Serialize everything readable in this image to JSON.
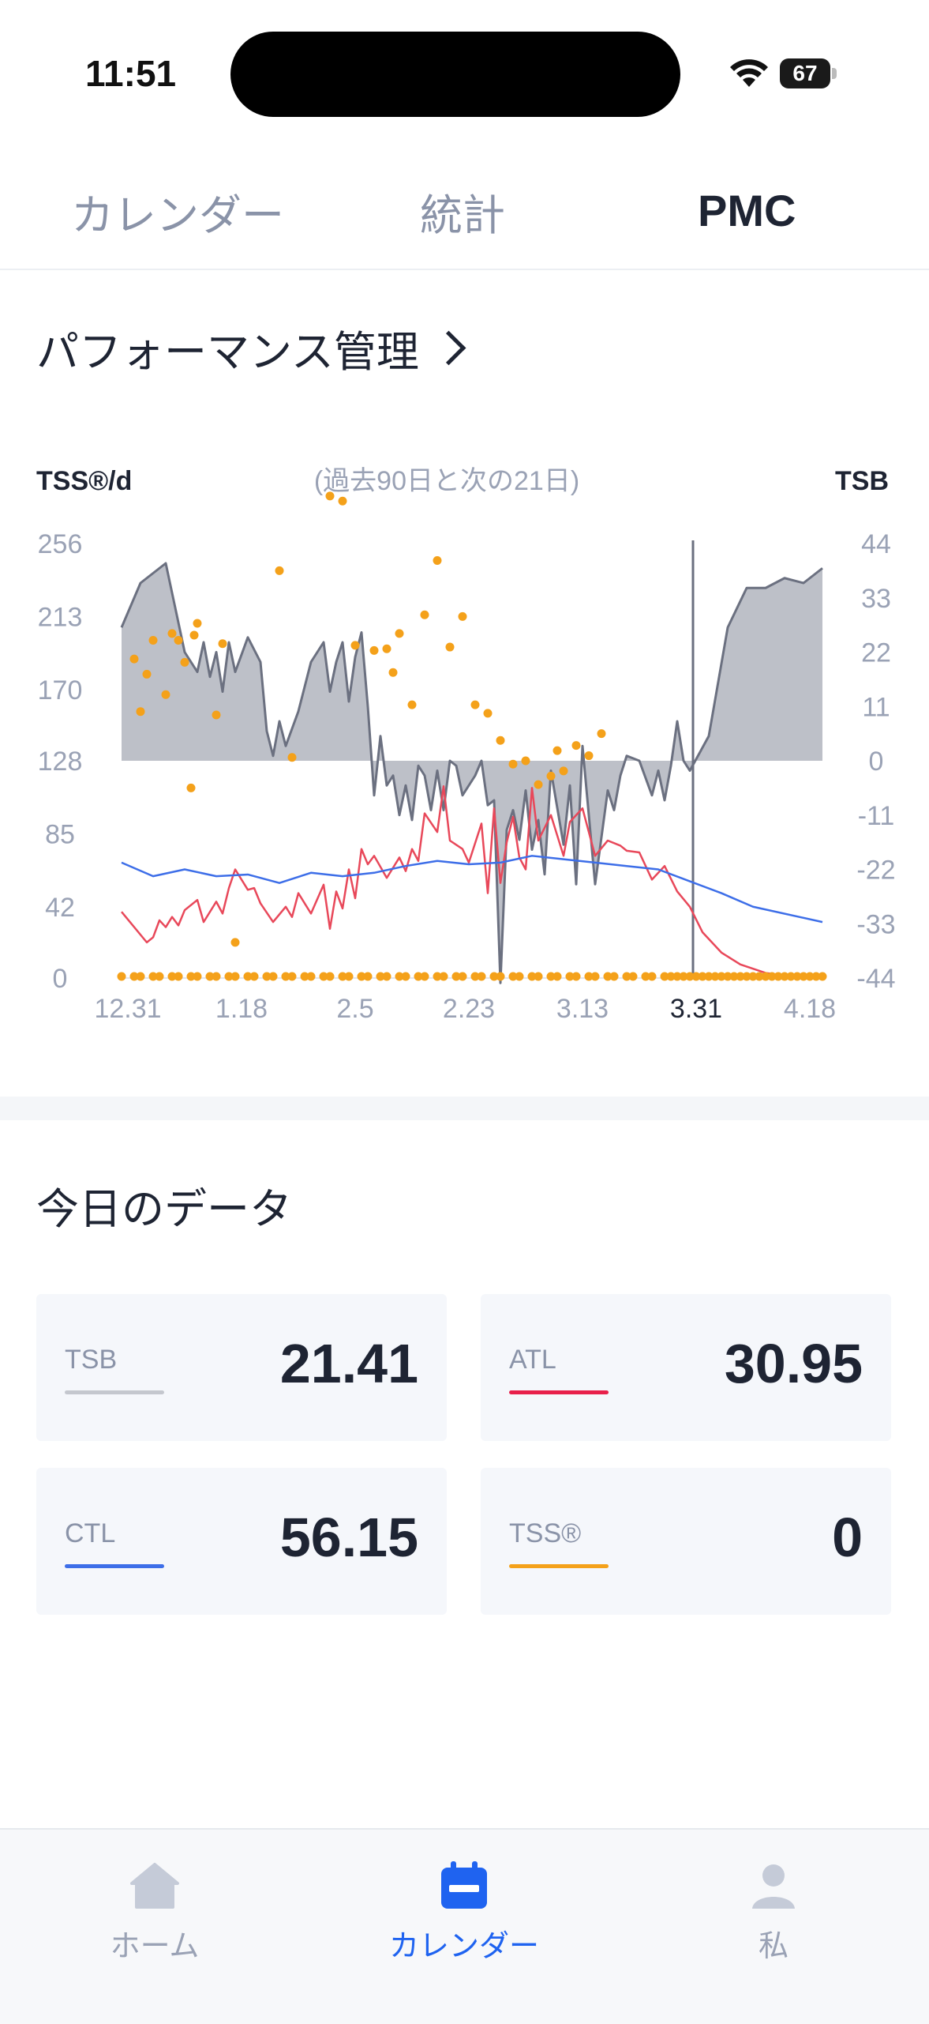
{
  "status": {
    "time": "11:51",
    "battery": "67"
  },
  "tabs": [
    {
      "label": "カレンダー",
      "active": false
    },
    {
      "label": "統計",
      "active": false
    },
    {
      "label": "PMC",
      "active": true
    }
  ],
  "pmc": {
    "title": "パフォーマンス管理"
  },
  "chart_data": {
    "type": "line",
    "title": "",
    "subtitle": "(過去90日と次の21日)",
    "ylabel_left": "TSS®/d",
    "ylabel_right": "TSB",
    "left_ticks": [
      "256",
      "213",
      "170",
      "128",
      "85",
      "42",
      "0"
    ],
    "right_ticks": [
      "44",
      "33",
      "22",
      "11",
      "0",
      "-11",
      "-22",
      "-33",
      "-44"
    ],
    "x_ticks": [
      "12.31",
      "1.18",
      "2.5",
      "2.23",
      "3.13",
      "3.31",
      "4.18"
    ],
    "highlight_x": "3.31",
    "ylim_left": [
      0,
      256
    ],
    "ylim_right": [
      -44,
      44
    ],
    "series": [
      {
        "name": "TSB",
        "color": "#6b7080",
        "fill": "#bdc0c8",
        "x": [
          0,
          3,
          7,
          10,
          12,
          13,
          14,
          15,
          16,
          17,
          18,
          20,
          22,
          23,
          24,
          25,
          26,
          28,
          30,
          32,
          33,
          34,
          35,
          36,
          37,
          38,
          39,
          40,
          41,
          42,
          43,
          44,
          45,
          46,
          47,
          48,
          49,
          50,
          51,
          52,
          53,
          54,
          55,
          56,
          57,
          58,
          59,
          60,
          61,
          62,
          63,
          64,
          65,
          66,
          67,
          68,
          70,
          71,
          72,
          73,
          75,
          77,
          78,
          79,
          80,
          82,
          84,
          85,
          86,
          87,
          88,
          89,
          90,
          93,
          96,
          99,
          102,
          105,
          108,
          111
        ],
        "values": [
          27,
          36,
          40,
          22,
          18,
          24,
          17,
          22,
          14,
          24,
          18,
          25,
          20,
          6,
          1,
          8,
          3,
          10,
          20,
          24,
          14,
          20,
          24,
          12,
          21,
          26,
          11,
          -7,
          5,
          -5,
          -3,
          -11,
          -5,
          -12,
          -1,
          -3,
          -10,
          -2,
          -10,
          0,
          -1,
          -7,
          -5,
          -3,
          0,
          -9,
          -8,
          -45,
          -14,
          -10,
          -16,
          -6,
          -18,
          -12,
          -23,
          -2,
          -17,
          -5,
          -25,
          3,
          -25,
          -6,
          -10,
          -3,
          1,
          0,
          -7,
          -2,
          -8,
          -1,
          8,
          0,
          -2,
          5,
          27,
          35,
          35,
          37,
          36,
          39
        ]
      },
      {
        "name": "ATL",
        "color": "#e8485a",
        "x": [
          0,
          4,
          5,
          6,
          7,
          8,
          9,
          10,
          12,
          13,
          15,
          16,
          17,
          18,
          20,
          21,
          22,
          24,
          26,
          27,
          28,
          30,
          32,
          33,
          34,
          35,
          36,
          37,
          38,
          39,
          40,
          42,
          43,
          44,
          45,
          46,
          47,
          48,
          50,
          51,
          52,
          54,
          55,
          57,
          58,
          59,
          60,
          61,
          62,
          63,
          64,
          65,
          66,
          68,
          70,
          71,
          73,
          75,
          77,
          79,
          80,
          82,
          84,
          86,
          88,
          90,
          92,
          95,
          98,
          102,
          106,
          111
        ],
        "values": [
          39,
          21,
          24,
          34,
          30,
          36,
          31,
          40,
          46,
          33,
          45,
          38,
          53,
          64,
          52,
          53,
          44,
          33,
          42,
          36,
          50,
          38,
          55,
          29,
          51,
          41,
          64,
          47,
          76,
          67,
          72,
          59,
          65,
          71,
          63,
          76,
          69,
          97,
          86,
          113,
          81,
          76,
          68,
          91,
          50,
          100,
          56,
          80,
          95,
          71,
          64,
          112,
          81,
          96,
          72,
          92,
          100,
          72,
          81,
          78,
          75,
          74,
          58,
          66,
          51,
          42,
          27,
          15,
          8,
          3,
          1,
          0
        ]
      },
      {
        "name": "CTL",
        "color": "#3d6ee8",
        "x": [
          0,
          5,
          10,
          15,
          20,
          25,
          30,
          35,
          40,
          45,
          50,
          55,
          60,
          65,
          70,
          75,
          80,
          85,
          90,
          95,
          100,
          111
        ],
        "values": [
          68,
          60,
          64,
          60,
          61,
          56,
          62,
          60,
          62,
          66,
          69,
          67,
          68,
          72,
          70,
          68,
          66,
          64,
          57,
          50,
          42,
          33
        ]
      },
      {
        "name": "TSS",
        "color": "#f4a11a",
        "points": [
          [
            2,
            188
          ],
          [
            3,
            157
          ],
          [
            4,
            179
          ],
          [
            5,
            199
          ],
          [
            7,
            167
          ],
          [
            8,
            203
          ],
          [
            9,
            199
          ],
          [
            10,
            186
          ],
          [
            11,
            112
          ],
          [
            11.5,
            202
          ],
          [
            12,
            209
          ],
          [
            15,
            155
          ],
          [
            16,
            197
          ],
          [
            18,
            21
          ],
          [
            25,
            240
          ],
          [
            27,
            130
          ],
          [
            33,
            284
          ],
          [
            35,
            281
          ],
          [
            37,
            196
          ],
          [
            40,
            193
          ],
          [
            42,
            194
          ],
          [
            43,
            180
          ],
          [
            44,
            203
          ],
          [
            46,
            161
          ],
          [
            48,
            214
          ],
          [
            50,
            246
          ],
          [
            52,
            195
          ],
          [
            54,
            213
          ],
          [
            56,
            161
          ],
          [
            58,
            156
          ],
          [
            60,
            140
          ],
          [
            62,
            126
          ],
          [
            64,
            128
          ],
          [
            66,
            114
          ],
          [
            68,
            119
          ],
          [
            69,
            134
          ],
          [
            70,
            122
          ],
          [
            72,
            137
          ],
          [
            74,
            131
          ],
          [
            76,
            144
          ]
        ]
      }
    ]
  },
  "today": {
    "title": "今日のデータ",
    "cards": [
      {
        "label": "TSB",
        "value": "21.41",
        "color": "#c4c7ce"
      },
      {
        "label": "ATL",
        "value": "30.95",
        "color": "#e8204a"
      },
      {
        "label": "CTL",
        "value": "56.15",
        "color": "#3d6ee8"
      },
      {
        "label": "TSS®",
        "value": "0",
        "color": "#f4a11a"
      }
    ]
  },
  "nav": [
    {
      "label": "ホーム",
      "icon": "house-icon",
      "active": false
    },
    {
      "label": "カレンダー",
      "icon": "calendar-icon",
      "active": true
    },
    {
      "label": "私",
      "icon": "person-icon",
      "active": false
    }
  ]
}
